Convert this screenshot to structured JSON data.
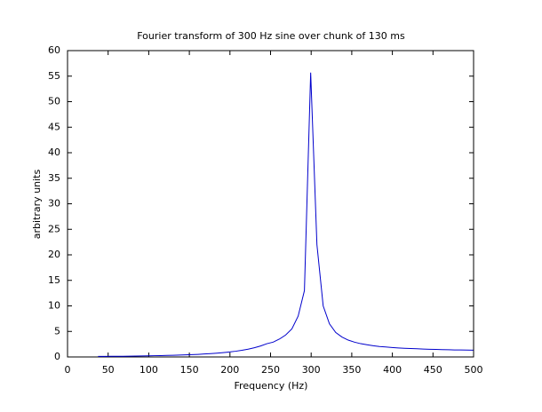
{
  "chart_data": {
    "type": "line",
    "title": "Fourier transform of 300 Hz sine over chunk of 130 ms",
    "xlabel": "Frequency (Hz)",
    "ylabel": "arbitrary units",
    "x": [
      37.6,
      45.3,
      53.0,
      60.7,
      68.4,
      76.1,
      83.8,
      91.5,
      99.2,
      106.9,
      114.6,
      122.3,
      130.0,
      137.7,
      145.4,
      153.1,
      160.8,
      168.5,
      176.2,
      183.9,
      191.6,
      199.3,
      207.0,
      214.7,
      222.4,
      230.1,
      237.8,
      245.5,
      253.2,
      260.9,
      268.6,
      276.3,
      284.0,
      291.7,
      299.4,
      307.1,
      314.8,
      322.5,
      330.2,
      337.9,
      345.6,
      353.3,
      361.0,
      368.7,
      376.4,
      384.1,
      391.8,
      399.5,
      407.2,
      414.9,
      422.6,
      430.3,
      438.0,
      445.7,
      453.4,
      461.1,
      468.8,
      476.5,
      484.2,
      491.9,
      499.6
    ],
    "series": [
      {
        "color": "#0000cc",
        "values": [
          0.1,
          0.1,
          0.12,
          0.13,
          0.14,
          0.16,
          0.18,
          0.2,
          0.22,
          0.25,
          0.27,
          0.3,
          0.33,
          0.37,
          0.41,
          0.46,
          0.51,
          0.58,
          0.65,
          0.74,
          0.85,
          0.97,
          1.12,
          1.3,
          1.52,
          1.8,
          2.15,
          2.6,
          2.9,
          3.5,
          4.3,
          5.5,
          8,
          13,
          55.7,
          22,
          10,
          6.5,
          4.8,
          3.9,
          3.3,
          2.9,
          2.6,
          2.4,
          2.2,
          2.05,
          1.95,
          1.85,
          1.77,
          1.7,
          1.65,
          1.6,
          1.55,
          1.5,
          1.47,
          1.44,
          1.41,
          1.38,
          1.36,
          1.34,
          1.32
        ]
      }
    ],
    "xlim": [
      0,
      500
    ],
    "xticks": [
      0,
      50,
      100,
      150,
      200,
      250,
      300,
      350,
      400,
      450,
      500
    ],
    "ylim": [
      0,
      60
    ],
    "yticks": [
      0,
      5,
      10,
      15,
      20,
      25,
      30,
      35,
      40,
      45,
      50,
      55,
      60
    ],
    "grid": false
  }
}
